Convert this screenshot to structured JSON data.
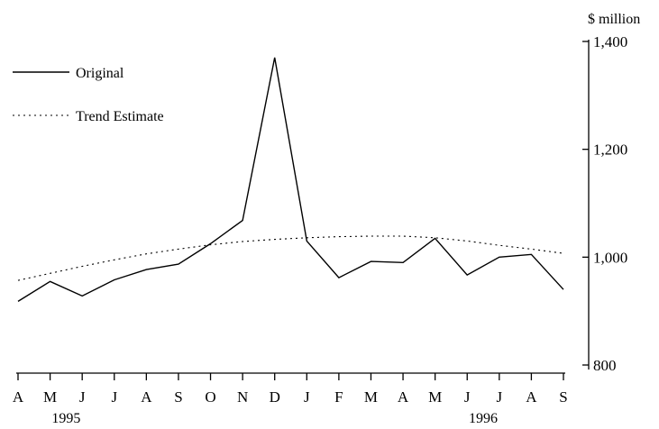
{
  "chart_data": {
    "type": "line",
    "unit_label": "$ million",
    "x": [
      "A",
      "M",
      "J",
      "J",
      "A",
      "S",
      "O",
      "N",
      "D",
      "J",
      "F",
      "M",
      "A",
      "M",
      "J",
      "J",
      "A",
      "S"
    ],
    "year_labels": [
      {
        "text": "1995",
        "at_index": 1.5
      },
      {
        "text": "1996",
        "at_index": 14.5
      }
    ],
    "yticks": [
      "1,400",
      "1,200",
      "1,000",
      "800"
    ],
    "ytick_values": [
      1400,
      1200,
      1000,
      800
    ],
    "ylim": [
      800,
      1400
    ],
    "series": [
      {
        "name": "Original",
        "style": "solid",
        "values": [
          918,
          955,
          928,
          958,
          977,
          987,
          1025,
          1068,
          1370,
          1030,
          962,
          992,
          990,
          1035,
          967,
          1000,
          1005,
          940
        ]
      },
      {
        "name": "Trend Estimate",
        "style": "dotted",
        "values": [
          957,
          970,
          983,
          995,
          1006,
          1015,
          1023,
          1029,
          1033,
          1036,
          1038,
          1039,
          1039,
          1036,
          1030,
          1022,
          1015,
          1007
        ]
      }
    ],
    "legend_position": "top-left",
    "grid": false
  }
}
